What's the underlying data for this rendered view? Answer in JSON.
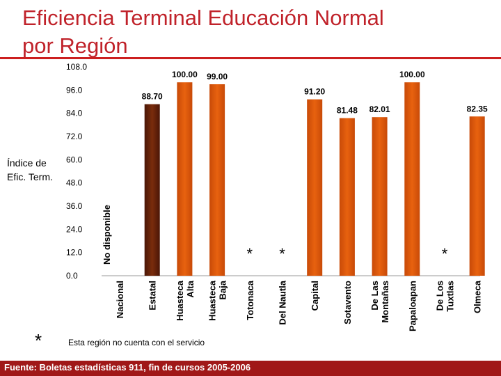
{
  "title_lines": [
    "Eficiencia Terminal Educación Normal",
    "por Región"
  ],
  "ylabel_lines": [
    "Índice de",
    "Efic. Term."
  ],
  "footnote": {
    "symbol": "*",
    "text": "Esta región no cuenta con el servicio"
  },
  "footer": "Fuente: Boletas estadísticas 911, fin de cursos 2005-2006",
  "colors": {
    "title": "#c0222a",
    "accent_line": "#cc1f1f",
    "footer_bg": "#a01818",
    "bar_orange": "#e8620f",
    "bar_dark": "#7a2c0c"
  },
  "chart_data": {
    "type": "bar",
    "ylim": [
      0,
      108
    ],
    "yticks": [
      "0.0",
      "12.0",
      "24.0",
      "36.0",
      "48.0",
      "60.0",
      "72.0",
      "84.0",
      "96.0",
      "108.0"
    ],
    "categories": [
      "Nacional",
      "Estatal",
      "Huasteca Alta",
      "Huasteca Baja",
      "Totonaca",
      "Del Nautla",
      "Capital",
      "Sotavento",
      "De Las Montañas",
      "Papaloapan",
      "De Los Tuxtlas",
      "Olmeca"
    ],
    "values": [
      null,
      88.7,
      100.0,
      99.0,
      null,
      null,
      91.2,
      81.48,
      82.01,
      100.0,
      null,
      82.35
    ],
    "value_labels": [
      "",
      "88.70",
      "100.00",
      "99.00",
      "",
      "",
      "91.20",
      "81.48",
      "82.01",
      "100.00",
      "",
      "82.35"
    ],
    "annotations": [
      "No disponible",
      "",
      "",
      "",
      "*",
      "*",
      "",
      "",
      "",
      "",
      "*",
      ""
    ]
  }
}
